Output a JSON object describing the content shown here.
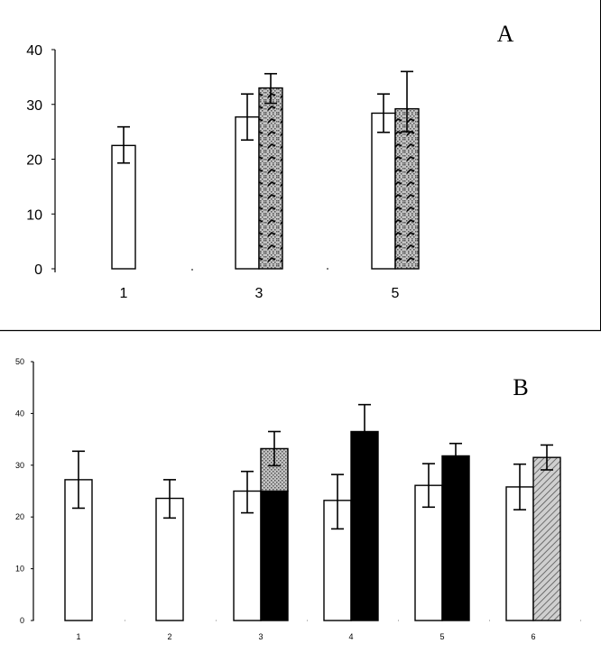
{
  "chart_data": [
    {
      "panel_label": "A",
      "type": "bar",
      "categories": [
        "1",
        "3",
        "5"
      ],
      "ylim": [
        0,
        40
      ],
      "yticks": [
        0,
        10,
        20,
        30,
        40
      ],
      "series": [
        {
          "name": "white",
          "fill": "#ffffff",
          "pattern": "none",
          "values": [
            22.5,
            27.7,
            28.4
          ],
          "errors_hi": [
            3.4,
            4.2,
            3.5
          ],
          "errors_lo": [
            3.2,
            4.2,
            3.5
          ]
        },
        {
          "name": "dotted",
          "fill": "#b8b8b8",
          "pattern": "dotted-wavy",
          "values": [
            null,
            33.0,
            29.2
          ],
          "errors_hi": [
            null,
            2.6,
            6.8
          ],
          "errors_lo": [
            null,
            2.8,
            4.2
          ]
        }
      ]
    },
    {
      "panel_label": "B",
      "type": "bar",
      "categories": [
        "1",
        "2",
        "3",
        "4",
        "5",
        "6"
      ],
      "ylim": [
        0,
        50
      ],
      "yticks": [
        0,
        10,
        20,
        30,
        40,
        50
      ],
      "series": [
        {
          "name": "white",
          "fill": "#ffffff",
          "pattern": "none",
          "values": [
            27.2,
            23.6,
            25.0,
            23.2,
            26.1,
            25.8
          ],
          "errors_hi": [
            5.5,
            3.6,
            3.8,
            5.0,
            4.2,
            4.4
          ],
          "errors_lo": [
            5.5,
            3.8,
            4.2,
            5.5,
            4.2,
            4.4
          ]
        },
        {
          "name": "second",
          "fill": "#000000",
          "pattern": "varied",
          "values": [
            null,
            null,
            33.2,
            36.5,
            31.8,
            31.5
          ],
          "errors_hi": [
            null,
            null,
            3.3,
            5.2,
            2.4,
            2.4
          ],
          "errors_lo": [
            null,
            null,
            3.3,
            null,
            2.4,
            2.4
          ],
          "bar_styles": [
            null,
            null,
            "dotted-top-black-bottom",
            "solid-black",
            "solid-black",
            "hatched-gray"
          ]
        }
      ]
    }
  ]
}
